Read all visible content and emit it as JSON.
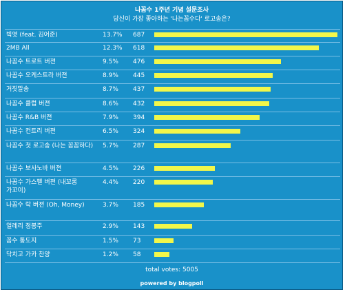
{
  "title": "나꼼수 1주년 기념 설문조사",
  "subtitle": "당신이 가장 좋아하는 '나는꼼수다' 로고송은?",
  "total_votes": "total votes: 5005",
  "powered_by": "powered by blogpoll",
  "bar_color": "#f2f74a",
  "background_color": "#1991c9",
  "chart_data": {
    "type": "bar",
    "orientation": "horizontal",
    "title": "나꼼수 1주년 기념 설문조사",
    "subtitle": "당신이 가장 좋아하는 '나는꼼수다' 로고송은?",
    "categories": [
      "빅엿 (feat. 김어준)",
      "2MB All",
      "나꼼수 트로트 버젼",
      "나꼼수 오케스트라 버젼",
      "거짓말송",
      "나꼼수 클럽 버젼",
      "나꼼수 R&B 버젼",
      "나꼼수 컨트리 버젼",
      "나꼼수 첫 로고송 (나는 꼼꼼하다)",
      "나꼼수 보사노바 버젼",
      "나꼼수 가스펠 버젼 (내꼬롱 가꼬이)",
      "나꼼수 락 버젼 (Oh, Money)",
      "얼레리 정봉주",
      "꼼수 통도지",
      "닥치고 가카 찬양"
    ],
    "percents": [
      "13.7%",
      "12.3%",
      "9.5%",
      "8.9%",
      "8.7%",
      "8.6%",
      "7.9%",
      "6.5%",
      "5.7%",
      "4.5%",
      "4.4%",
      "3.7%",
      "2.9%",
      "1.5%",
      "1.2%"
    ],
    "values": [
      687,
      618,
      476,
      445,
      437,
      432,
      394,
      324,
      287,
      226,
      220,
      185,
      143,
      73,
      58
    ],
    "total": 5005
  }
}
